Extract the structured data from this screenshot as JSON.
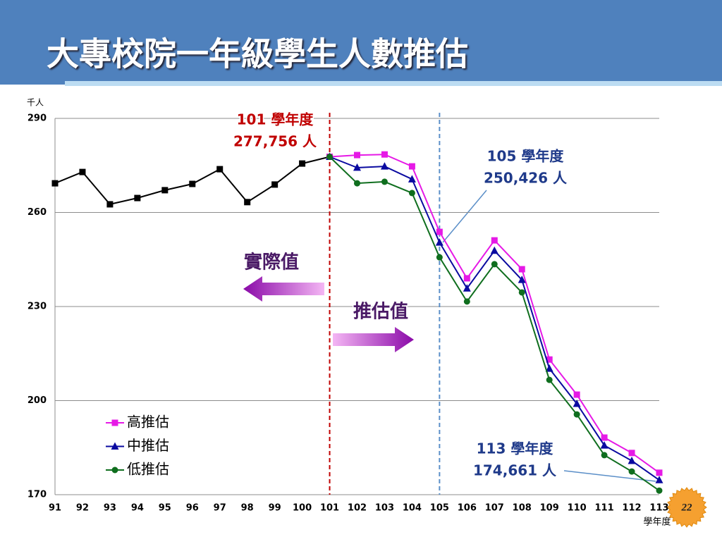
{
  "page_title": "大專校院一年級學生人數推估",
  "page_number": "22",
  "chart_data": {
    "type": "line",
    "y_label": "千人",
    "x_label": "學年度",
    "categories": [
      "91",
      "92",
      "93",
      "94",
      "95",
      "96",
      "97",
      "98",
      "99",
      "100",
      "101",
      "102",
      "103",
      "104",
      "105",
      "106",
      "107",
      "108",
      "109",
      "110",
      "111",
      "112",
      "113"
    ],
    "ylim": [
      170,
      290
    ],
    "yticks": [
      170,
      200,
      230,
      260,
      290
    ],
    "grid": true,
    "legend": "lower left",
    "series": [
      {
        "name": "實際",
        "color": "#000000",
        "marker": "square",
        "in_legend": false,
        "values": [
          269.3,
          272.9,
          262.6,
          264.6,
          267.1,
          269.1,
          273.8,
          263.3,
          268.9,
          275.6,
          277.756,
          null,
          null,
          null,
          null,
          null,
          null,
          null,
          null,
          null,
          null,
          null,
          null
        ]
      },
      {
        "name": "高推估",
        "color": "#e619e6",
        "marker": "square",
        "values": [
          null,
          null,
          null,
          null,
          null,
          null,
          null,
          null,
          null,
          null,
          277.756,
          278.3,
          278.5,
          274.7,
          253.8,
          239.0,
          251.1,
          241.9,
          213.1,
          201.9,
          188.2,
          183.3,
          177.0
        ]
      },
      {
        "name": "中推估",
        "color": "#0a0aa0",
        "marker": "triangle",
        "values": [
          null,
          null,
          null,
          null,
          null,
          null,
          null,
          null,
          null,
          null,
          277.756,
          274.3,
          274.7,
          270.6,
          250.426,
          235.8,
          247.8,
          238.5,
          210.2,
          199.0,
          185.7,
          180.8,
          174.661
        ]
      },
      {
        "name": "低推估",
        "color": "#0f6e1e",
        "marker": "circle",
        "values": [
          null,
          null,
          null,
          null,
          null,
          null,
          null,
          null,
          null,
          null,
          277.756,
          269.3,
          269.8,
          266.2,
          245.7,
          231.6,
          243.5,
          234.5,
          206.6,
          195.6,
          182.6,
          177.4,
          171.3
        ]
      }
    ],
    "annotations": [
      {
        "lines": [
          "101 學年度",
          "277,756 人"
        ],
        "color": "#c00000"
      },
      {
        "lines": [
          "105 學年度",
          "250,426 人"
        ],
        "color": "#1f3a8a"
      },
      {
        "lines": [
          "113 學年度",
          "174,661 人"
        ],
        "color": "#1f3a8a"
      },
      {
        "lines": [
          "實際值"
        ],
        "color": "#4a1a66"
      },
      {
        "lines": [
          "推估值"
        ],
        "color": "#4a1a66"
      }
    ]
  }
}
